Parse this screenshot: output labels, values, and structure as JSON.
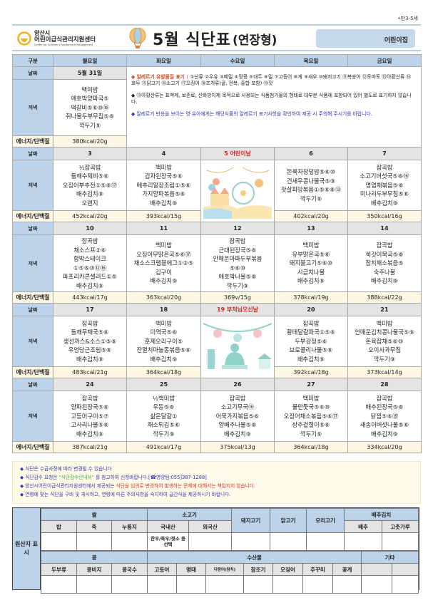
{
  "age_group": "•만3-5세",
  "org": {
    "city": "양산시",
    "name": "어린이급식관리지원센터",
    "eng": "Center for Children's Foodservice Management"
  },
  "title": {
    "main": "5월  식단표",
    "sub": "(연장형)"
  },
  "facility": "어린이집",
  "colors": {
    "header_bg": "#bcd3ea",
    "date_bg": "#e4e4e4",
    "energy_bg": "#fdf7e4",
    "holiday": "#d22222"
  },
  "table": {
    "headers": [
      "구분",
      "월요일",
      "화요일",
      "수요일",
      "목요일",
      "금요일"
    ],
    "row_labels": {
      "date": "날짜",
      "meal": "저녁",
      "energy": "에너지/단백질"
    },
    "allergy_notes": {
      "line1_label": "◆ 알레르기 유발물질 표기 :",
      "line1_list": " ①난류 ②우유 ③메밀 ④땅콩 ⑤대두 ⑥밀 ⑦고등어 ⑧게 ⑨새우 ⑩돼지고기 ⑪복숭아 ⑫토마토 ⑬아황산류 ⑭호두 ⑮닭고기 ⑯소고기 ⑰오징어 ⑱조개류(굴, 전복, 홍합 포함) ⑲잣",
      "line2": "◆ ⑬아황산류는 표백제, 보존료, 산화방지제 목적으로 사용되는 식품첨가물의 형태로 대부분 식품에 포함되어 있어 별도로 표기하지 않습니다.",
      "line3": "◆ 알레르기 반응을 보이는 영·유아에게는 해당식품의 알레르기 표기사항을 확인하여 제공 시 주의해 주시기를 바랍니다."
    },
    "weeks": [
      {
        "days": [
          {
            "date": "5월 31일",
            "menu": [
              "백미밥",
              "애호박양파국⑤",
              "떡갈비⑤⑥⑩⑯",
              "취나물두부무침⑤⑥",
              "깍두기⑨"
            ],
            "energy": "380kcal/20g"
          }
        ]
      },
      {
        "days": [
          {
            "date": "3",
            "menu": [
              "½잡곡밥",
              "들깨수제비⑤⑥",
              "오징어부추전①⑤⑥⑰",
              "배추김치⑨",
              "오렌지"
            ],
            "energy": "452kcal/20g"
          },
          {
            "date": "4",
            "menu": [
              "백미밥",
              "감자된장국⑤⑥",
              "메추리알장조림①⑤⑥",
              "가지양파볶음⑤⑥",
              "배추김치⑨"
            ],
            "energy": "393kcal/15g"
          },
          {
            "date": "5 어린이날",
            "holiday": true,
            "image": "childrens-day-illustration"
          },
          {
            "date": "6",
            "menu": [
              "돈육자장덮밥⑤⑥⑩",
              "건새우콩나물국⑤⑨",
              "맛살피망볶음①⑤⑥⑧⑬",
              "깍두기⑨"
            ],
            "energy": "402kcal/20g"
          },
          {
            "date": "7",
            "menu": [
              "잡곡밥",
              "소고기버섯국⑤⑥⑯",
              "명엽채볶음⑤⑥",
              "미나리두부무침⑤⑥",
              "배추김치⑨"
            ],
            "energy": "350kcal/16g"
          }
        ]
      },
      {
        "days": [
          {
            "date": "10",
            "menu": [
              "잡곡밥",
              "채소스프②⑥",
              "함박스테이크",
              "①⑤⑥⑩⑫⑯",
              "파프리카콘샐러드①⑤",
              "배추김치⑨"
            ],
            "energy": "443kcal/17g"
          },
          {
            "date": "11",
            "menu": [
              "백미밥",
              "오징어무맑은국⑤⑥⑰",
              "채소스크램블에그①②⑤",
              "김구이",
              "배추김치⑨"
            ],
            "energy": "363kcal/20g"
          },
          {
            "date": "12",
            "menu": [
              "잡곡밥",
              "근대된장국⑤⑥",
              "안매운마파두부볶음",
              "⑤⑥⑩",
              "애호박나물⑤⑥",
              "깍두기⑨"
            ],
            "energy": "369v/15g"
          },
          {
            "date": "13",
            "menu": [
              "백미밥",
              "유부맑은국⑤⑥",
              "돼지불고기⑤⑥⑩",
              "시금치나물",
              "배추김치⑨"
            ],
            "energy": "378kcal/19g"
          },
          {
            "date": "14",
            "menu": [
              "잡곡밥",
              "쑥갓어묵국⑤⑥",
              "참치채소볶음⑤",
              "숙주나물",
              "배추김치⑨"
            ],
            "energy": "388kcal/22g"
          }
        ]
      },
      {
        "days": [
          {
            "date": "17",
            "menu": [
              "잡곡밥",
              "들깨무채국⑤⑥",
              "생선까스&소스①⑤⑥",
              "우엉당근조림⑤⑥",
              "배추김치⑨"
            ],
            "energy": "483kcal/21g"
          },
          {
            "date": "18",
            "menu": [
              "백미밥",
              "미역국⑤⑥",
              "훈제오리구이⑤",
              "잔멸치마늘종볶음⑤⑥",
              "배추김치⑨"
            ],
            "energy": "364kcal/18g"
          },
          {
            "date": "19 부처님오신날",
            "holiday": true,
            "image": "buddhas-birthday-illustration"
          },
          {
            "date": "20",
            "menu": [
              "잡곡밥",
              "황태달걀파국①⑤⑥",
              "두부강정⑤⑥",
              "브로콜리나물⑤⑥",
              "배추김치⑨"
            ],
            "energy": "392kcal/18g"
          },
          {
            "date": "21",
            "menu": [
              "백미밥",
              "안매운김치콩나물국⑤⑨",
              "돈육잡채⑤⑥⑩",
              "오이사과무침",
              "깍두기⑨"
            ],
            "energy": "373kcal/14g"
          }
        ]
      },
      {
        "days": [
          {
            "date": "24",
            "menu": [
              "잡곡밥",
              "양파된장국⑤⑥",
              "고등어구이⑤⑦",
              "고사리나물⑤⑥",
              "배추김치⑨"
            ],
            "energy": "387kcal/21g"
          },
          {
            "date": "25",
            "menu": [
              "½백미밥",
              "우동⑤⑥",
              "삶은달걀①",
              "채소튀김⑤⑥",
              "깍두기⑨"
            ],
            "energy": "491kcal/17g"
          },
          {
            "date": "26",
            "menu": [
              "잡곡밥",
              "소고기무국⑯",
              "어묵가지볶음⑤⑥",
              "양배추나물⑤⑥",
              "배추김치⑨"
            ],
            "energy": "375kcal/13g"
          },
          {
            "date": "27",
            "menu": [
              "백미밥",
              "물만둣국⑤⑥⑩",
              "오징어채소볶음⑤⑥⑰",
              "상추겉절이⑤⑥",
              "깍두기⑨"
            ],
            "energy": "364kcal/18g"
          },
          {
            "date": "28",
            "menu": [
              "잡곡밥",
              "배추된장국⑤⑥",
              "닭찜⑤⑥⑮",
              "새송이버섯나물⑤⑥",
              "배추김치⑨"
            ],
            "energy": "334kcal/20g"
          }
        ]
      }
    ]
  },
  "footnotes": {
    "n1": "◆ 식단은 수급사정에 따라 변경될 수 있습니다",
    "n2_a": "◆ 식단감수 요청은 ",
    "n2_b": "\"식단감수안내서\"",
    "n2_c": " 를 참고하여 신청바랍니다.[☎영양팀:055]387-1288]",
    "n3_a": "◆ 양산시어린이급식관리지원센터에서 제공되는 ",
    "n3_b": "식단을 임의로 변경하여 발생하는 문제에 대해서는 책임지지 않습니다.",
    "n4": "◆ 연령에 맞는 식단을 구비 및 게시하고, 연령에 따른 주의사항을 숙지하여 급간식을 제공하시기 바랍니다."
  },
  "origin": {
    "label": "원산지 표시",
    "top_groups": [
      "쌀",
      "소고기",
      "돼지고기",
      "닭고기",
      "오리고기",
      "배추김치"
    ],
    "top_sub": [
      "밥",
      "죽",
      "누룽지",
      "국내산",
      "외국산",
      "배추",
      "고춧가루"
    ],
    "beef_domestic_value": "한우/육우/젖소 중 선택",
    "bottom_groups": [
      "콩",
      "수산물",
      "기타"
    ],
    "bottom_sub": [
      "두부류",
      "콩비지",
      "콩국수",
      "고등어",
      "명태",
      "다랑어(참치)",
      "참조기",
      "오징어",
      "주꾸미",
      "꽃게"
    ]
  }
}
